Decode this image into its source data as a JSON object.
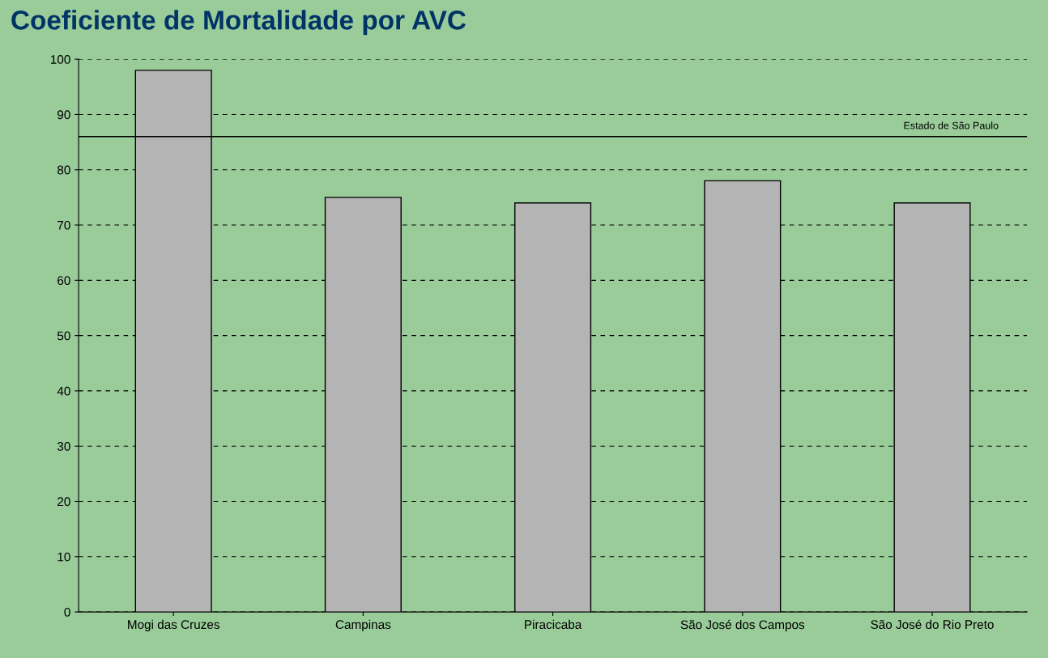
{
  "chart_data": {
    "type": "bar",
    "title": "Coeficiente de Mortalidade por AVC",
    "categories": [
      "Mogi das Cruzes",
      "Campinas",
      "Piracicaba",
      "São José dos Campos",
      "São José do Rio Preto"
    ],
    "values": [
      98,
      75,
      74,
      78,
      74
    ],
    "color": "#b4b4b4",
    "ylim": [
      0,
      100
    ],
    "yticks": [
      0,
      10,
      20,
      30,
      40,
      50,
      60,
      70,
      80,
      90,
      100
    ],
    "grid": "y",
    "ref_lines": [
      {
        "axis": "y",
        "value": 86,
        "label": "Estado de São Paulo",
        "color": "#000000",
        "line_style": "solid"
      }
    ]
  }
}
